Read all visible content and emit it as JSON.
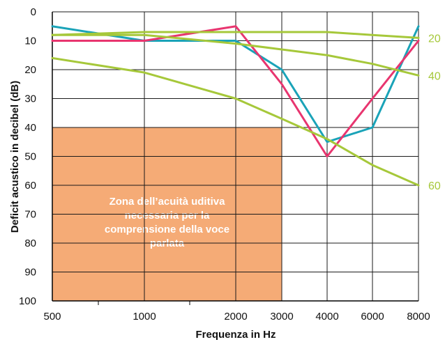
{
  "chart_data": {
    "type": "line",
    "xlabel": "Frequenza in Hz",
    "ylabel": "Deficit acustico in decibel (dB)",
    "x_categories": [
      "500",
      "1000",
      "2000",
      "3000",
      "4000",
      "6000",
      "8000"
    ],
    "y_ticks": [
      "0",
      "10",
      "20",
      "30",
      "40",
      "50",
      "60",
      "70",
      "80",
      "90",
      "100"
    ],
    "ylim": [
      0,
      100
    ],
    "y_inverted": true,
    "grid": true,
    "zone": {
      "label_lines": [
        "Zona dell’acuità uditiva",
        "necessaria per la",
        "comprensione della voce",
        "parlata"
      ],
      "x_from": "500",
      "x_to": "3000",
      "y_from": 40,
      "y_to": 100,
      "color": "#f5ab76"
    },
    "series": [
      {
        "color": "#1aa3b8",
        "points": [
          [
            "500",
            5
          ],
          [
            "1000",
            10
          ],
          [
            "2000",
            10
          ],
          [
            "3000",
            20
          ],
          [
            "4000",
            45
          ],
          [
            "6000",
            40
          ],
          [
            "8000",
            5
          ]
        ]
      },
      {
        "color": "#e8356f",
        "points": [
          [
            "500",
            10
          ],
          [
            "1000",
            10
          ],
          [
            "2000",
            5
          ],
          [
            "3000",
            25
          ],
          [
            "4000",
            50
          ],
          [
            "6000",
            30
          ],
          [
            "8000",
            10
          ]
        ]
      },
      {
        "color": "#a6c83a",
        "label": "20",
        "points": [
          [
            "500",
            8
          ],
          [
            "1000",
            7
          ],
          [
            "2000",
            7
          ],
          [
            "3000",
            7
          ],
          [
            "4000",
            7
          ],
          [
            "6000",
            8
          ],
          [
            "8000",
            9
          ]
        ]
      },
      {
        "color": "#a6c83a",
        "label": "40",
        "points": [
          [
            "500",
            8
          ],
          [
            "1000",
            8
          ],
          [
            "2000",
            11
          ],
          [
            "3000",
            13
          ],
          [
            "4000",
            15
          ],
          [
            "6000",
            18
          ],
          [
            "8000",
            22
          ]
        ]
      },
      {
        "color": "#a6c83a",
        "label": "60",
        "points": [
          [
            "500",
            16
          ],
          [
            "1000",
            21
          ],
          [
            "2000",
            30
          ],
          [
            "3000",
            37
          ],
          [
            "4000",
            44
          ],
          [
            "6000",
            53
          ],
          [
            "8000",
            60
          ]
        ]
      }
    ]
  }
}
